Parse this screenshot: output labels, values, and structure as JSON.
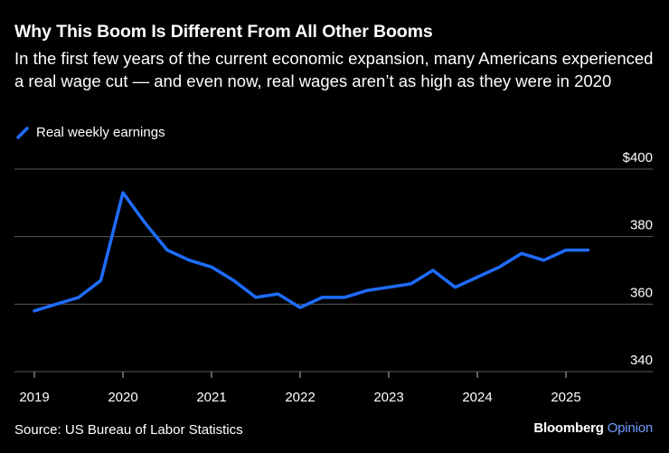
{
  "header": {
    "title": "Why This Boom Is Different From All Other Booms",
    "subtitle": "In the first few years of the current economic expansion, many Americans experienced a real wage cut — and even now, real wages aren’t as high as they were in 2020"
  },
  "legend": {
    "series_label": "Real weekly earnings"
  },
  "footer": {
    "source": "Source: US Bureau of Labor Statistics",
    "brand_main": "Bloomberg",
    "brand_sub": "Opinion"
  },
  "colors": {
    "series": "#1f6cff",
    "grid": "#5a5a5a",
    "background": "#000000",
    "brand_accent": "#6e9cff"
  },
  "chart_data": {
    "type": "line",
    "title": "Why This Boom Is Different From All Other Booms",
    "subtitle": "In the first few years of the current economic expansion, many Americans experienced a real wage cut — and even now, real wages aren’t as high as they were in 2020",
    "x_ticks": [
      "2019",
      "2020",
      "2021",
      "2022",
      "2023",
      "2024",
      "2025"
    ],
    "y_ticks": [
      "340",
      "360",
      "380",
      "$400"
    ],
    "ylim": [
      340,
      400
    ],
    "xlim": [
      2019.0,
      2025.75
    ],
    "grid": "horizontal",
    "legend_position": "top-left",
    "series": [
      {
        "name": "Real weekly earnings",
        "x": [
          2019.0,
          2019.25,
          2019.5,
          2019.75,
          2020.0,
          2020.25,
          2020.5,
          2020.75,
          2021.0,
          2021.25,
          2021.5,
          2021.75,
          2022.0,
          2022.25,
          2022.5,
          2022.75,
          2023.0,
          2023.25,
          2023.5,
          2023.75,
          2024.0,
          2024.25,
          2024.5,
          2024.75,
          2025.0,
          2025.25
        ],
        "y": [
          358,
          360,
          362,
          367,
          393,
          384,
          376,
          373,
          371,
          367,
          362,
          363,
          359,
          362,
          362,
          364,
          365,
          366,
          370,
          365,
          368,
          371,
          375,
          373,
          376,
          376
        ]
      }
    ]
  }
}
